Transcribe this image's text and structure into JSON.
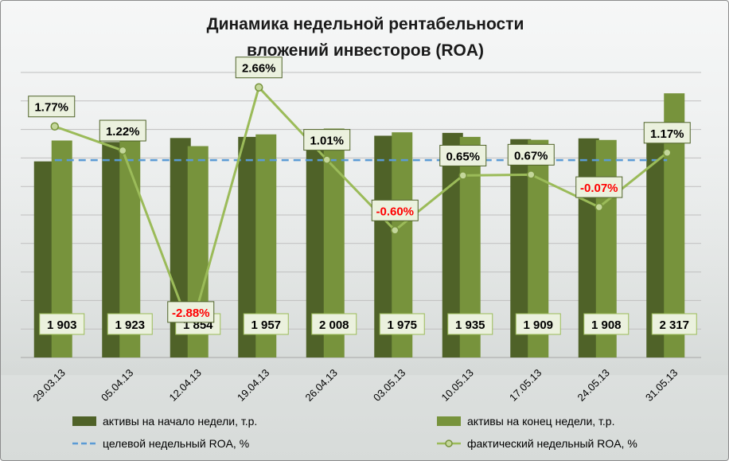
{
  "chart_data": {
    "type": "bar",
    "title_lines": [
      "Динамика недельной рентабельности",
      "вложений  инвесторов (ROA)"
    ],
    "categories": [
      "29.03.13",
      "05.04.13",
      "12.04.13",
      "19.04.13",
      "26.04.13",
      "03.05.13",
      "10.05.13",
      "17.05.13",
      "24.05.13",
      "31.05.13"
    ],
    "series": [
      {
        "name": "активы на начало  недели, т.р.",
        "kind": "bar",
        "color": "#4f6228",
        "values": [
          1720,
          1890,
          1925,
          1935,
          1940,
          1945,
          1970,
          1915,
          1922,
          1920
        ]
      },
      {
        "name": "активы на конец недели, т.р.",
        "kind": "bar",
        "color": "#77933c",
        "values": [
          1903,
          1923,
          1854,
          1957,
          2008,
          1975,
          1935,
          1909,
          1908,
          2317
        ]
      },
      {
        "name": "целевой недельный ROA, %",
        "kind": "dashed-line",
        "color": "#5b9bd5",
        "values": [
          1.0,
          1.0,
          1.0,
          1.0,
          1.0,
          1.0,
          1.0,
          1.0,
          1.0,
          1.0
        ]
      },
      {
        "name": "фактический недельный ROA, %",
        "kind": "line-marker",
        "color": "#9bbb59",
        "values": [
          1.77,
          1.22,
          -2.88,
          2.66,
          1.01,
          -0.6,
          0.65,
          0.67,
          -0.07,
          1.17
        ]
      }
    ],
    "bar_value_labels": [
      "1 903",
      "1 923",
      "1 854",
      "1 957",
      "2 008",
      "1 975",
      "1 935",
      "1 909",
      "1 908",
      "2 317"
    ],
    "roa_labels": [
      "1.77%",
      "1.22%",
      "-2.88%",
      "2.66%",
      "1.01%",
      "-0.60%",
      "0.65%",
      "0.67%",
      "-0.07%",
      "1.17%"
    ],
    "bar_axis_range": [
      0,
      2500
    ],
    "roa_axis_range": [
      -3.5,
      3
    ],
    "gridlines": true,
    "legend_position": "bottom",
    "colors": {
      "negative_label": "#ff0000",
      "positive_label": "#000000",
      "label_box_fill": "#ebf1de",
      "label_box_border": "#4f6228",
      "gridline": "#bfbfbf"
    }
  }
}
